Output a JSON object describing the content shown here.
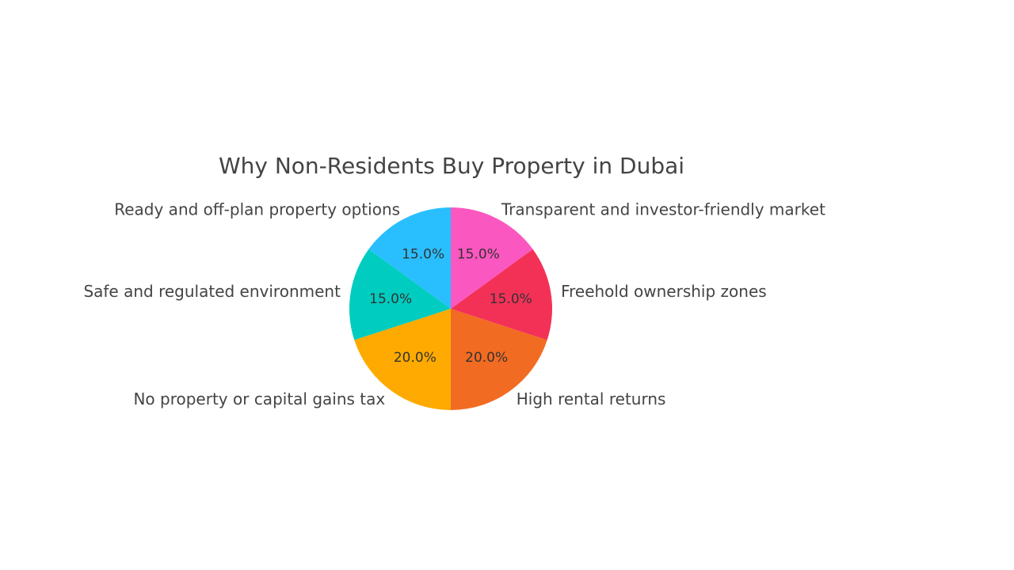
{
  "chart_data": {
    "type": "pie",
    "title": "Why Non-Residents Buy Property in Dubai",
    "categories": [
      "Ready and off-plan property options",
      "Safe and regulated environment",
      "No property or capital gains tax",
      "High rental returns",
      "Freehold ownership zones",
      "Transparent and investor-friendly market"
    ],
    "values": [
      15,
      15,
      20,
      20,
      15,
      15
    ],
    "percent_labels": [
      "15.0%",
      "15.0%",
      "20.0%",
      "20.0%",
      "15.0%",
      "15.0%"
    ],
    "colors": [
      "#29BFFF",
      "#00CCC0",
      "#FFAA00",
      "#F26B22",
      "#F33157",
      "#FB57C0"
    ],
    "start_angle": 90,
    "direction": "counterclockwise",
    "legend": "none"
  }
}
